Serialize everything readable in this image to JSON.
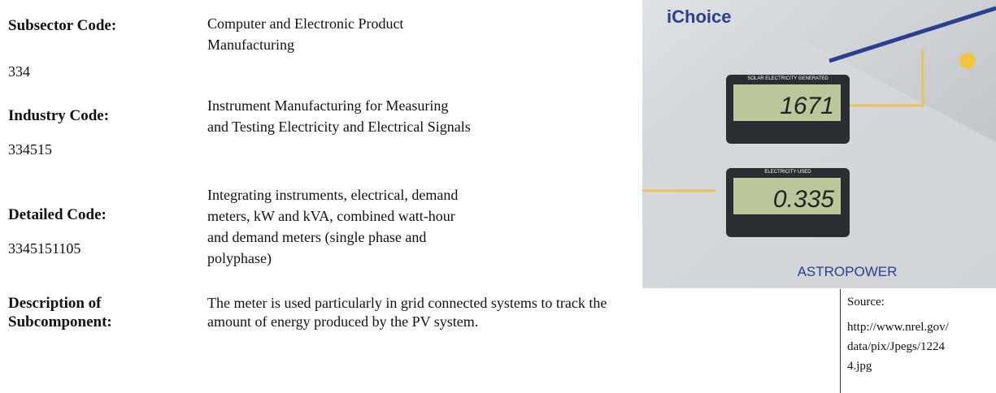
{
  "rows": [
    {
      "label": "Subsector Code:",
      "code": "334",
      "value_lines": [
        "Computer and Electronic Product",
        "Manufacturing"
      ]
    },
    {
      "label": "Industry Code:",
      "code": "334515",
      "value_lines": [
        "Instrument Manufacturing for Measuring",
        "and Testing Electricity and Electrical Signals"
      ]
    },
    {
      "label": "Detailed Code:",
      "code": "3345151105",
      "value_lines": [
        "Integrating instruments, electrical, demand",
        "meters, kW and kVA, combined watt-hour",
        "and demand meters (single phase and",
        "polyphase)"
      ]
    }
  ],
  "description": {
    "label_lines": [
      "Description of",
      "Subcomponent:"
    ],
    "text_lines": [
      "The meter is used particularly in grid connected systems to track the",
      "amount of energy produced by the PV system."
    ]
  },
  "source": {
    "label": "Source:",
    "url_lines": [
      "http://www.nrel.gov/",
      "data/pix/Jpegs/1224",
      "4.jpg"
    ]
  },
  "image": {
    "brand": "iChoice",
    "meter1_caption": "SOLAR ELECTRICITY GENERATED",
    "meter1_reading": "1671",
    "meter2_caption": "ELECTRICITY USED",
    "meter2_reading": "0.335",
    "maker": "ASTROPOWER"
  }
}
